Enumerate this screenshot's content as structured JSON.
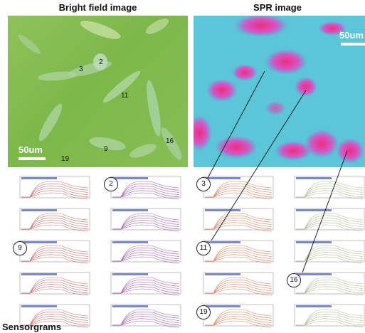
{
  "titles": {
    "bright_field": "Bright field image",
    "spr": "SPR image",
    "sensorgrams": "Sensorgrams"
  },
  "scale_bars": {
    "bright_field": "50um",
    "spr": "50um"
  },
  "cell_labels": [
    "2",
    "3",
    "11",
    "9",
    "16",
    "19"
  ],
  "sensorgram_circled_labels": [
    "2",
    "3",
    "9",
    "11",
    "16",
    "19"
  ],
  "colors": {
    "bright_field_background": "#86bf55",
    "spr_background": "#4fc7d6",
    "spr_hotspot": "#ee2d7c"
  },
  "sensorgram_grid": {
    "columns": 4,
    "rows": 5
  }
}
